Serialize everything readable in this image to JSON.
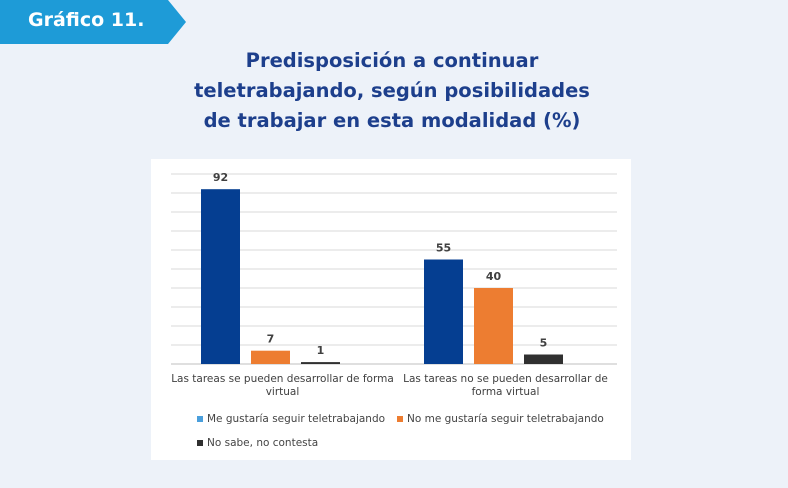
{
  "badge": {
    "label": "Gráfico 11.",
    "color": "#1e9bd7"
  },
  "title_lines": [
    "Predisposición  a continuar",
    "teletrabajando,  según posibilidades",
    "de trabajar en esta modalidad (%)"
  ],
  "chart_data": {
    "type": "bar",
    "title": "Predisposición a continuar teletrabajando, según posibilidades de trabajar en esta modalidad (%)",
    "categories": [
      [
        "Las tareas se pueden desarrollar de forma",
        "virtual"
      ],
      [
        "Las tareas no se pueden desarrollar de",
        "forma virtual"
      ]
    ],
    "series": [
      {
        "name": "Me gustaría seguir teletrabajando",
        "values": [
          92,
          55
        ],
        "color": "#053e91",
        "legend_color": "#4a9fdc"
      },
      {
        "name": "No me gustaría seguir teletrabajando",
        "values": [
          7,
          40
        ],
        "color": "#ed7d31",
        "legend_color": "#ed7d31"
      },
      {
        "name": "No sabe, no contesta",
        "values": [
          1,
          5
        ],
        "color": "#303030",
        "legend_color": "#303030"
      }
    ],
    "ylim": [
      0,
      100
    ],
    "grid": true,
    "legend_position": "bottom"
  }
}
